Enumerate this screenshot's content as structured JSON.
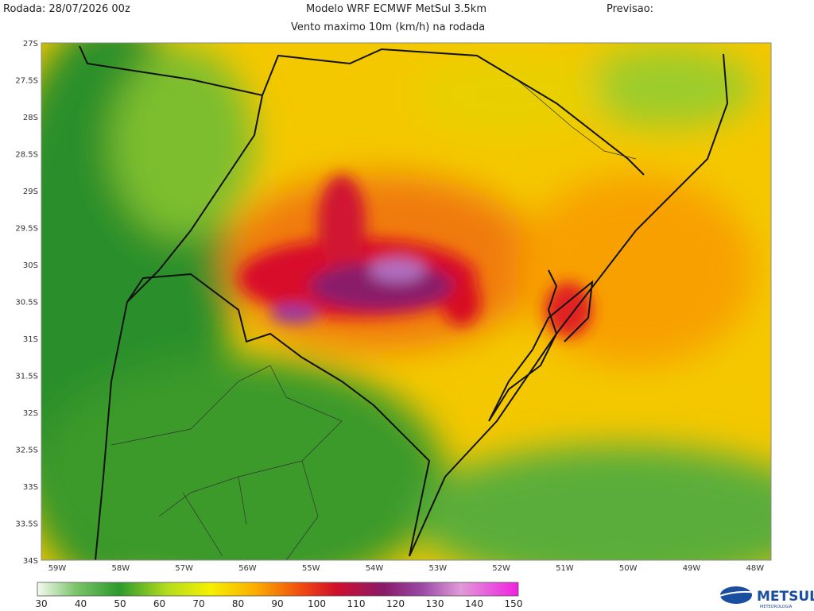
{
  "header": {
    "run": "Rodada: 28/07/2026 00z",
    "title": "Modelo WRF ECMWF MetSul 3.5km",
    "subtitle": "Vento maximo 10m (km/h) na rodada",
    "forecast": "Previsao:"
  },
  "map": {
    "lat_labels": [
      "27S",
      "27.5S",
      "28S",
      "28.5S",
      "29S",
      "29.5S",
      "30S",
      "30.5S",
      "31S",
      "31.5S",
      "32S",
      "32.5S",
      "33S",
      "33.5S",
      "34S"
    ],
    "lon_labels": [
      "59W",
      "58W",
      "57W",
      "56W",
      "55W",
      "54W",
      "53W",
      "52W",
      "51W",
      "50W",
      "49W",
      "48W"
    ]
  },
  "colorbar": {
    "labels": [
      "30",
      "40",
      "50",
      "60",
      "70",
      "80",
      "90",
      "100",
      "110",
      "120",
      "130",
      "140",
      "150"
    ]
  },
  "logo": {
    "name": "METSUL",
    "tagline": "METEOROLOGIA"
  }
}
